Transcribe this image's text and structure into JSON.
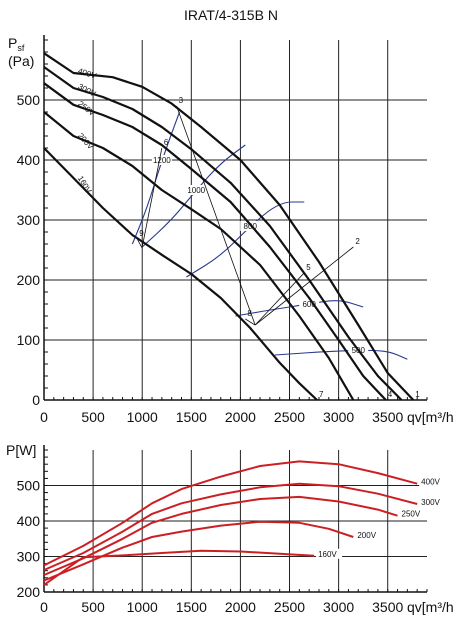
{
  "chart_data": [
    {
      "type": "line",
      "title": "IRAT/4-315B N",
      "ylabel": "Psf",
      "ylabel_sub": "(Pa)",
      "xlabel": "qv[m³/h",
      "xlim": [
        0,
        3900
      ],
      "ylim": [
        0,
        600
      ],
      "xticks": [
        0,
        500,
        1000,
        1500,
        2000,
        2500,
        3000,
        3500
      ],
      "yticks": [
        0,
        100,
        200,
        300,
        400,
        500
      ],
      "grid": true,
      "series": [
        {
          "name": "400V",
          "x": [
            0,
            300,
            700,
            1000,
            1300,
            1600,
            2000,
            2400,
            2800,
            3200,
            3500,
            3760
          ],
          "y": [
            578,
            545,
            538,
            522,
            494,
            455,
            400,
            325,
            230,
            125,
            45,
            0
          ]
        },
        {
          "name": "300V",
          "x": [
            0,
            300,
            600,
            900,
            1200,
            1500,
            1900,
            2300,
            2700,
            3100,
            3400,
            3640
          ],
          "y": [
            555,
            520,
            505,
            485,
            455,
            418,
            362,
            290,
            200,
            105,
            40,
            0
          ]
        },
        {
          "name": "250V",
          "x": [
            0,
            300,
            600,
            900,
            1200,
            1500,
            1900,
            2300,
            2700,
            3000,
            3250,
            3480
          ],
          "y": [
            528,
            492,
            475,
            455,
            425,
            385,
            330,
            255,
            170,
            100,
            40,
            0
          ]
        },
        {
          "name": "200V",
          "x": [
            0,
            300,
            600,
            900,
            1200,
            1500,
            1800,
            2200,
            2600,
            2900,
            3150
          ],
          "y": [
            480,
            440,
            420,
            390,
            350,
            318,
            285,
            225,
            140,
            70,
            0
          ]
        },
        {
          "name": "160V",
          "x": [
            0,
            300,
            600,
            900,
            1200,
            1500,
            1800,
            2100,
            2400,
            2600,
            2780
          ],
          "y": [
            420,
            370,
            320,
            275,
            242,
            210,
            170,
            120,
            62,
            28,
            0
          ]
        }
      ],
      "system_lines": [
        {
          "label": "3",
          "x": [
            1350,
            2150
          ],
          "y": [
            490,
            125
          ]
        },
        {
          "label": "6",
          "x": [
            1200,
            1000
          ],
          "y": [
            420,
            255
          ]
        },
        {
          "label": "9",
          "x": [
            950,
            1000
          ],
          "y": [
            268,
            253
          ]
        },
        {
          "label": "2",
          "x": [
            3150,
            2150
          ],
          "y": [
            255,
            125
          ]
        },
        {
          "label": "5",
          "x": [
            2650,
            2150
          ],
          "y": [
            212,
            125
          ]
        },
        {
          "label": "8",
          "x": [
            2050,
            2150
          ],
          "y": [
            135,
            125
          ]
        },
        {
          "label": "1",
          "x": [
            3760,
            3900
          ],
          "y": [
            0,
            0
          ]
        },
        {
          "label": "4",
          "x": [
            3480,
            3600
          ],
          "y": [
            0,
            0
          ]
        },
        {
          "label": "7",
          "x": [
            2780,
            2900
          ],
          "y": [
            0,
            0
          ]
        }
      ],
      "power_contours": [
        {
          "label": "1200",
          "x": [
            900,
            1050,
            1200,
            1380
          ],
          "y": [
            260,
            320,
            400,
            480
          ]
        },
        {
          "label": "1000",
          "x": [
            1000,
            1300,
            1550,
            1800,
            2050
          ],
          "y": [
            255,
            300,
            350,
            395,
            425
          ]
        },
        {
          "label": "800",
          "x": [
            1450,
            1800,
            2100,
            2400,
            2650
          ],
          "y": [
            205,
            240,
            290,
            330,
            330
          ]
        },
        {
          "label": "600",
          "x": [
            1950,
            2300,
            2700,
            3000,
            3250
          ],
          "y": [
            140,
            150,
            160,
            168,
            155
          ]
        },
        {
          "label": "500",
          "x": [
            2350,
            2800,
            3200,
            3500,
            3700
          ],
          "y": [
            75,
            80,
            83,
            82,
            68
          ]
        }
      ],
      "line_color": "#111111",
      "system_line_color": "#111111",
      "contour_color": "#2a3a8c"
    },
    {
      "type": "line",
      "ylabel": "P[W]",
      "xlabel": "qv[m³/h",
      "xlim": [
        0,
        3900
      ],
      "ylim": [
        200,
        600
      ],
      "xticks": [
        0,
        500,
        1000,
        1500,
        2000,
        2500,
        3000,
        3500
      ],
      "yticks": [
        200,
        300,
        400,
        500
      ],
      "grid": true,
      "series": [
        {
          "name": "400V",
          "x": [
            0,
            400,
            800,
            1100,
            1400,
            1800,
            2200,
            2600,
            3000,
            3400,
            3800
          ],
          "y": [
            275,
            330,
            395,
            450,
            490,
            525,
            555,
            568,
            560,
            535,
            505
          ]
        },
        {
          "name": "300V",
          "x": [
            0,
            400,
            800,
            1100,
            1400,
            1800,
            2200,
            2600,
            3000,
            3400,
            3800
          ],
          "y": [
            262,
            310,
            370,
            420,
            450,
            475,
            495,
            505,
            498,
            477,
            448
          ]
        },
        {
          "name": "250V",
          "x": [
            0,
            400,
            800,
            1100,
            1400,
            1800,
            2200,
            2600,
            3000,
            3400,
            3600
          ],
          "y": [
            248,
            295,
            350,
            395,
            420,
            445,
            462,
            468,
            455,
            432,
            415
          ]
        },
        {
          "name": "200V",
          "x": [
            0,
            400,
            800,
            1100,
            1400,
            1800,
            2200,
            2600,
            2900,
            3150
          ],
          "y": [
            232,
            278,
            325,
            355,
            370,
            387,
            398,
            395,
            378,
            355
          ]
        },
        {
          "name": "160V",
          "x": [
            0,
            400,
            800,
            1200,
            1600,
            2000,
            2400,
            2750
          ],
          "y": [
            220,
            298,
            303,
            310,
            316,
            314,
            308,
            302
          ]
        }
      ],
      "line_color": "#cc1f24",
      "axis_label_color": "#cc1f24"
    }
  ]
}
